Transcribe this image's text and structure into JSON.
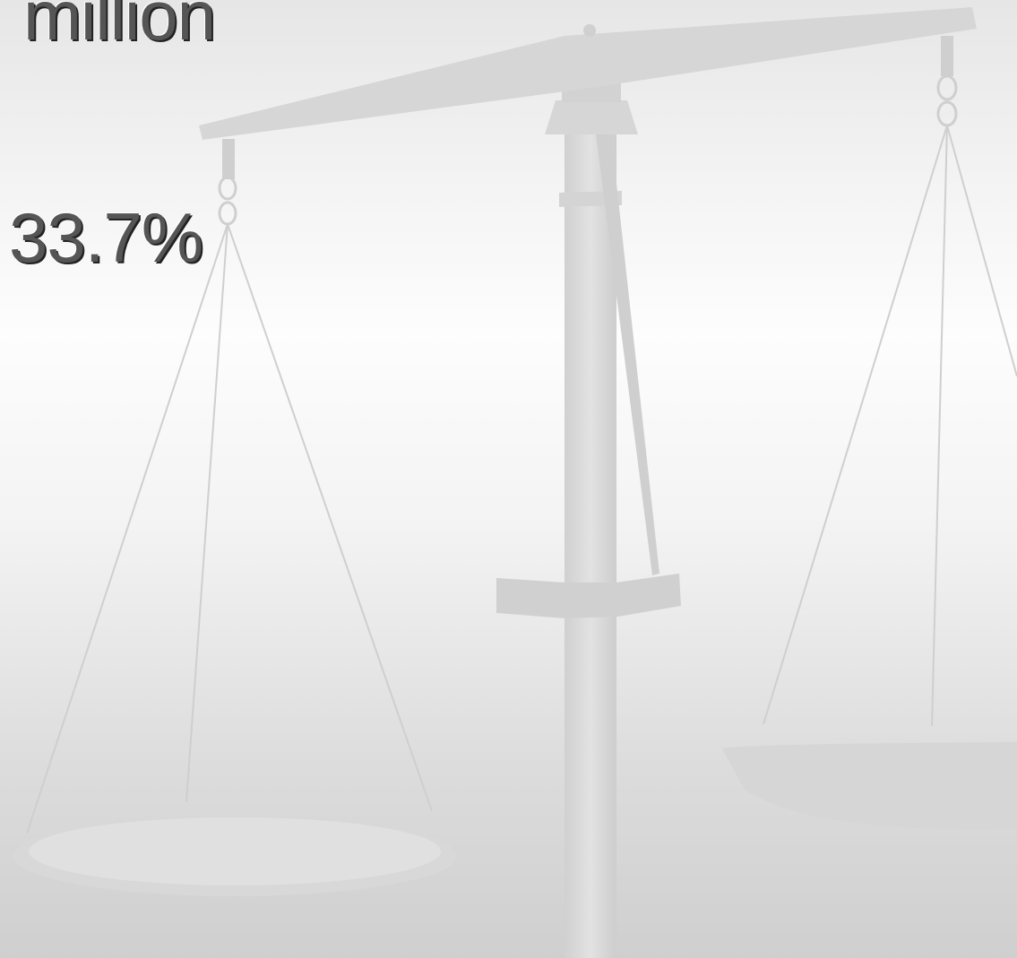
{
  "slide": {
    "lines": [
      "million",
      "33.7%"
    ]
  }
}
